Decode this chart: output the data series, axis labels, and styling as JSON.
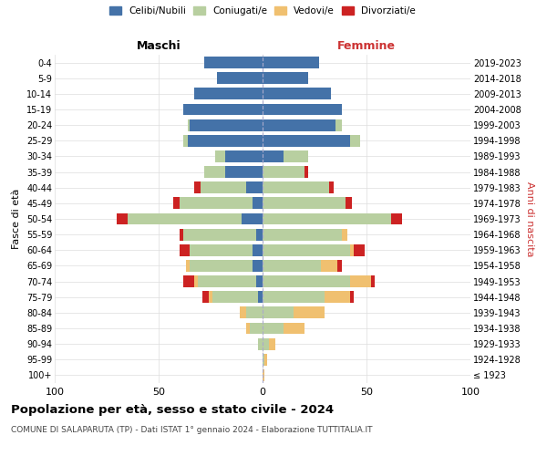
{
  "age_groups": [
    "100+",
    "95-99",
    "90-94",
    "85-89",
    "80-84",
    "75-79",
    "70-74",
    "65-69",
    "60-64",
    "55-59",
    "50-54",
    "45-49",
    "40-44",
    "35-39",
    "30-34",
    "25-29",
    "20-24",
    "15-19",
    "10-14",
    "5-9",
    "0-4"
  ],
  "birth_years": [
    "≤ 1923",
    "1924-1928",
    "1929-1933",
    "1934-1938",
    "1939-1943",
    "1944-1948",
    "1949-1953",
    "1954-1958",
    "1959-1963",
    "1964-1968",
    "1969-1973",
    "1974-1978",
    "1979-1983",
    "1984-1988",
    "1989-1993",
    "1994-1998",
    "1999-2003",
    "2004-2008",
    "2009-2013",
    "2014-2018",
    "2019-2023"
  ],
  "colors": {
    "celibi": "#4472a8",
    "coniugati": "#b8cfa0",
    "vedovi": "#f0c070",
    "divorziati": "#cc2222"
  },
  "maschi": {
    "celibi": [
      0,
      0,
      0,
      0,
      0,
      2,
      3,
      5,
      5,
      3,
      10,
      5,
      8,
      18,
      18,
      36,
      35,
      38,
      33,
      22,
      28
    ],
    "coniugati": [
      0,
      0,
      2,
      6,
      8,
      22,
      28,
      30,
      30,
      35,
      55,
      35,
      22,
      10,
      5,
      2,
      1,
      0,
      0,
      0,
      0
    ],
    "vedovi": [
      0,
      0,
      0,
      2,
      3,
      2,
      2,
      2,
      0,
      0,
      0,
      0,
      0,
      0,
      0,
      0,
      0,
      0,
      0,
      0,
      0
    ],
    "divorziati": [
      0,
      0,
      0,
      0,
      0,
      3,
      5,
      0,
      5,
      2,
      5,
      3,
      3,
      0,
      0,
      0,
      0,
      0,
      0,
      0,
      0
    ]
  },
  "femmine": {
    "celibi": [
      0,
      0,
      0,
      0,
      0,
      0,
      0,
      0,
      0,
      0,
      0,
      0,
      0,
      0,
      10,
      42,
      35,
      38,
      33,
      22,
      27
    ],
    "coniugati": [
      0,
      1,
      3,
      10,
      15,
      30,
      42,
      28,
      42,
      38,
      62,
      40,
      32,
      20,
      12,
      5,
      3,
      0,
      0,
      0,
      0
    ],
    "vedovi": [
      1,
      1,
      3,
      10,
      15,
      12,
      10,
      8,
      2,
      3,
      0,
      0,
      0,
      0,
      0,
      0,
      0,
      0,
      0,
      0,
      0
    ],
    "divorziati": [
      0,
      0,
      0,
      0,
      0,
      2,
      2,
      2,
      5,
      0,
      5,
      3,
      2,
      2,
      0,
      0,
      0,
      0,
      0,
      0,
      0
    ]
  },
  "title": "Popolazione per età, sesso e stato civile - 2024",
  "subtitle": "COMUNE DI SALAPARUTA (TP) - Dati ISTAT 1° gennaio 2024 - Elaborazione TUTTITALIA.IT",
  "xlabel_left": "Maschi",
  "xlabel_right": "Femmine",
  "ylabel_left": "Fasce di età",
  "ylabel_right": "Anni di nascita",
  "xlim": 100,
  "legend_labels": [
    "Celibi/Nubili",
    "Coniugati/e",
    "Vedovi/e",
    "Divorziati/e"
  ],
  "background_color": "#ffffff"
}
